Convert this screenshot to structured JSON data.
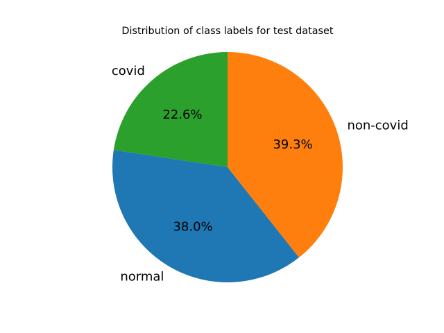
{
  "chart_data": {
    "type": "pie",
    "title": "Distribution of class labels for test dataset",
    "categories": [
      "covid",
      "normal",
      "non-covid"
    ],
    "values": [
      22.6,
      38.0,
      39.3
    ],
    "value_labels": [
      "22.6%",
      "38.0%",
      "39.3%"
    ],
    "colors": [
      "#2ca02c",
      "#1f77b4",
      "#ff7f0e"
    ],
    "start_angle_deg": 90,
    "direction": "counterclockwise",
    "legend": "none"
  }
}
